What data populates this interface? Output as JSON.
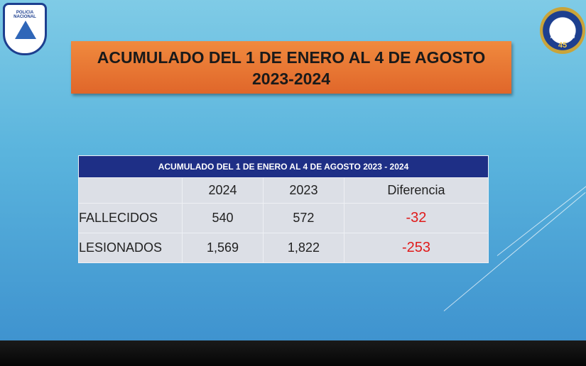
{
  "logos": {
    "left": "POLICIA NACIONAL",
    "right_text": "ANIVERSARIO",
    "right_number": "45"
  },
  "header": {
    "title": "ACUMULADO DEL 1 DE ENERO AL 4 DE AGOSTO",
    "subtitle": "2023-2024"
  },
  "table": {
    "caption": "ACUMULADO DEL 1 DE ENERO AL 4 DE AGOSTO  2023 - 2024",
    "columns": [
      "2024",
      "2023",
      "Diferencia"
    ],
    "rows": [
      [
        "FALLECIDOS",
        "540",
        "572",
        "-32"
      ],
      [
        "LESIONADOS",
        "1,569",
        "1,822",
        "-253"
      ]
    ]
  }
}
